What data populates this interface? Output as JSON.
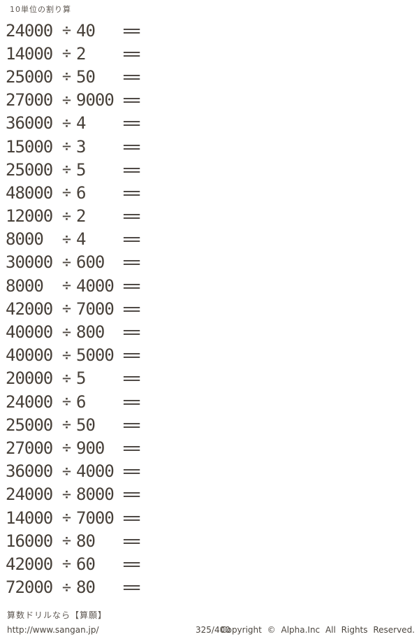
{
  "title": "10単位の割り算",
  "symbols": {
    "divide": "÷",
    "equals": "="
  },
  "problems": [
    {
      "dividend": "24000",
      "divisor": "40"
    },
    {
      "dividend": "14000",
      "divisor": "2"
    },
    {
      "dividend": "25000",
      "divisor": "50"
    },
    {
      "dividend": "27000",
      "divisor": "9000"
    },
    {
      "dividend": "36000",
      "divisor": "4"
    },
    {
      "dividend": "15000",
      "divisor": "3"
    },
    {
      "dividend": "25000",
      "divisor": "5"
    },
    {
      "dividend": "48000",
      "divisor": "6"
    },
    {
      "dividend": "12000",
      "divisor": "2"
    },
    {
      "dividend": "8000",
      "divisor": "4"
    },
    {
      "dividend": "30000",
      "divisor": "600"
    },
    {
      "dividend": "8000",
      "divisor": "4000"
    },
    {
      "dividend": "42000",
      "divisor": "7000"
    },
    {
      "dividend": "40000",
      "divisor": "800"
    },
    {
      "dividend": "40000",
      "divisor": "5000"
    },
    {
      "dividend": "20000",
      "divisor": "5"
    },
    {
      "dividend": "24000",
      "divisor": "6"
    },
    {
      "dividend": "25000",
      "divisor": "50"
    },
    {
      "dividend": "27000",
      "divisor": "900"
    },
    {
      "dividend": "36000",
      "divisor": "4000"
    },
    {
      "dividend": "24000",
      "divisor": "8000"
    },
    {
      "dividend": "14000",
      "divisor": "7000"
    },
    {
      "dividend": "16000",
      "divisor": "80"
    },
    {
      "dividend": "42000",
      "divisor": "60"
    },
    {
      "dividend": "72000",
      "divisor": "80"
    }
  ],
  "footer": {
    "brand": "算数ドリルなら【算願】",
    "url": "http://www.sangan.jp/",
    "page_number": "325/400",
    "copyright": "Copyright © Alpha.Inc All Rights Reserved."
  }
}
